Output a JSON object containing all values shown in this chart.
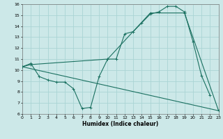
{
  "xlabel": "Humidex (Indice chaleur)",
  "xlim": [
    0,
    23
  ],
  "ylim": [
    6,
    16
  ],
  "xticks": [
    0,
    1,
    2,
    3,
    4,
    5,
    6,
    7,
    8,
    9,
    10,
    11,
    12,
    13,
    14,
    15,
    16,
    17,
    18,
    19,
    20,
    21,
    22,
    23
  ],
  "yticks": [
    6,
    7,
    8,
    9,
    10,
    11,
    12,
    13,
    14,
    15,
    16
  ],
  "bg_color": "#cce8e8",
  "grid_color": "#aad4d4",
  "line_color": "#1a7060",
  "line1": [
    [
      0,
      10.3
    ],
    [
      1,
      10.6
    ],
    [
      2,
      9.4
    ],
    [
      3,
      9.1
    ],
    [
      4,
      8.9
    ],
    [
      5,
      8.9
    ],
    [
      6,
      8.3
    ],
    [
      7,
      6.5
    ],
    [
      8,
      6.6
    ],
    [
      9,
      9.4
    ],
    [
      10,
      11.0
    ],
    [
      11,
      11.0
    ],
    [
      12,
      13.3
    ],
    [
      13,
      13.5
    ],
    [
      14,
      14.3
    ],
    [
      15,
      15.1
    ],
    [
      16,
      15.3
    ],
    [
      17,
      15.8
    ],
    [
      18,
      15.8
    ],
    [
      19,
      15.3
    ],
    [
      20,
      12.6
    ],
    [
      21,
      9.5
    ],
    [
      22,
      7.7
    ]
  ],
  "line2": [
    [
      0,
      10.3
    ],
    [
      1,
      10.5
    ],
    [
      10,
      11.0
    ],
    [
      15,
      15.2
    ],
    [
      19,
      15.2
    ],
    [
      23,
      6.3
    ]
  ],
  "line3": [
    [
      0,
      10.3
    ],
    [
      23,
      6.3
    ]
  ]
}
